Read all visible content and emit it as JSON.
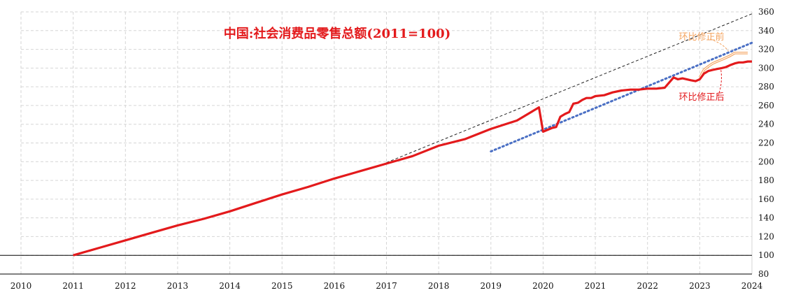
{
  "chart_data": {
    "type": "line",
    "title": "中国:社会消费品零售总额(2011=100)",
    "xlim": [
      2010,
      2024
    ],
    "ylim": [
      80,
      360
    ],
    "x_ticks": [
      "2010",
      "2011",
      "2012",
      "2013",
      "2014",
      "2015",
      "2016",
      "2017",
      "2018",
      "2019",
      "2020",
      "2021",
      "2022",
      "2023",
      "2024"
    ],
    "y_ticks": [
      "80",
      "100",
      "120",
      "140",
      "160",
      "180",
      "200",
      "220",
      "240",
      "260",
      "280",
      "300",
      "320",
      "340",
      "360"
    ],
    "grid": true,
    "colors": {
      "main_line": "#e31a1c",
      "pre_revision": "#f4a460",
      "trend_pre": "#222222",
      "trend_post": "#4a6fc4",
      "grid": "#d6d6d6",
      "title": "#e31a1c"
    },
    "annotations": [
      {
        "text": "环比修正前",
        "x": 2022.6,
        "y": 330,
        "color": "#f4a460"
      },
      {
        "text": "环比修正后",
        "x": 2022.6,
        "y": 266,
        "color": "#e31a1c"
      }
    ],
    "reference_line": {
      "y": 100
    },
    "series": [
      {
        "role": "main",
        "style": "solid",
        "x": [
          2011.0,
          2011.5,
          2012.0,
          2012.5,
          2013.0,
          2013.5,
          2014.0,
          2014.5,
          2015.0,
          2015.5,
          2016.0,
          2016.5,
          2017.0,
          2017.5,
          2018.0,
          2018.5,
          2019.0,
          2019.5,
          2019.92,
          2020.0,
          2020.17,
          2020.25,
          2020.33,
          2020.42,
          2020.5,
          2020.58,
          2020.67,
          2020.75,
          2020.83,
          2020.92,
          2021.0,
          2021.17,
          2021.33,
          2021.5,
          2021.67,
          2021.83,
          2022.0,
          2022.17,
          2022.33,
          2022.5,
          2022.58,
          2022.67,
          2022.75,
          2022.83,
          2022.92,
          2023.0,
          2023.08,
          2023.17,
          2023.25,
          2023.33,
          2023.42,
          2023.5,
          2023.58,
          2023.67,
          2023.75,
          2023.83,
          2023.92,
          2024.0
        ],
        "y": [
          100,
          108,
          116,
          124,
          132,
          139,
          147,
          156,
          165,
          173,
          182,
          190,
          198,
          206,
          217,
          224,
          235,
          244,
          258,
          232,
          236,
          237,
          248,
          251,
          253,
          262,
          263,
          266,
          268,
          268,
          270,
          271,
          274,
          276,
          277,
          277,
          278,
          278,
          279,
          290,
          288,
          289,
          288,
          287,
          286,
          288,
          294,
          297,
          298,
          299,
          300,
          301,
          303,
          305,
          306,
          306,
          307,
          307
        ]
      },
      {
        "role": "pre_revision",
        "style": "solid",
        "x": [
          2023.0,
          2023.08,
          2023.17,
          2023.25,
          2023.33,
          2023.42,
          2023.5,
          2023.58,
          2023.67,
          2023.75,
          2023.83,
          2023.92
        ],
        "y": [
          290,
          298,
          302,
          305,
          307,
          309,
          311,
          313,
          316,
          316,
          316,
          316
        ]
      },
      {
        "role": "trend_pre",
        "style": "dashed",
        "x": [
          2017.0,
          2024.0
        ],
        "y": [
          199,
          358
        ]
      },
      {
        "role": "trend_post",
        "style": "dotted",
        "x": [
          2019.0,
          2024.0
        ],
        "y": [
          211,
          327
        ]
      }
    ]
  }
}
